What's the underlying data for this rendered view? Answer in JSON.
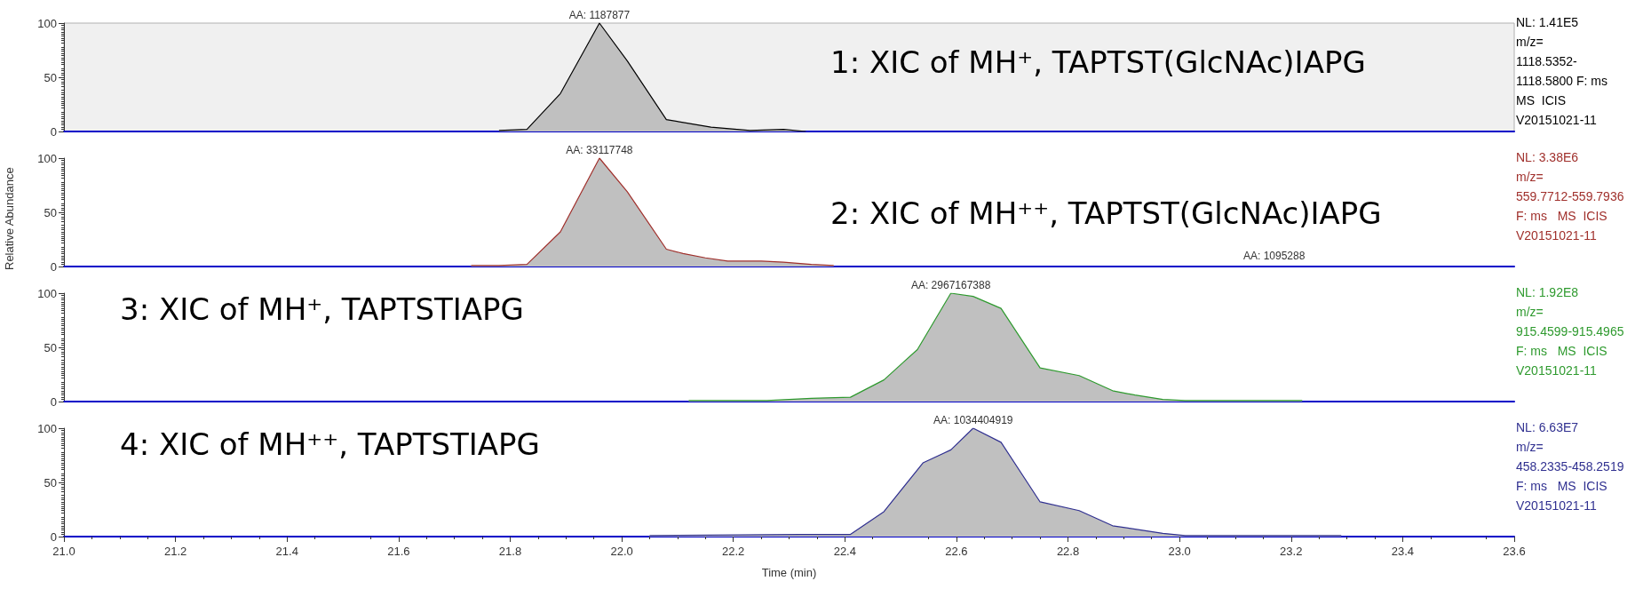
{
  "chart_data": [
    {
      "type": "area",
      "title": "1: XIC of MH⁺, TAPTST(GlcNAc)IAPG",
      "x": [
        21.78,
        21.83,
        21.89,
        21.96,
        22.01,
        22.08,
        22.16,
        22.23,
        22.29,
        22.33
      ],
      "series": [
        {
          "color": "#000000",
          "values": [
            1,
            2,
            35,
            100,
            65,
            11,
            4,
            1,
            2,
            0
          ]
        }
      ],
      "xlim": [
        21.0,
        23.6
      ],
      "ylim": [
        0,
        100
      ],
      "yticks": [
        0,
        50,
        100
      ],
      "tick_labels": "y",
      "grid": false,
      "marker": "none",
      "annotations": [
        {
          "text": "AA: 1187877",
          "x": 21.96,
          "y": 100
        },
        "NL: 1.41E5",
        "m/z=",
        "1118.5352-",
        "1118.5800 F: ms",
        "MS  ICIS",
        "V20151021-11"
      ]
    },
    {
      "type": "area",
      "title": "2: XIC of MH⁺⁺, TAPTST(GlcNAc)IAPG",
      "ylabel": "Relative Abundance",
      "x": [
        21.73,
        21.78,
        21.83,
        21.89,
        21.96,
        22.01,
        22.08,
        22.11,
        22.15,
        22.19,
        22.25,
        22.29,
        22.34,
        22.38
      ],
      "series": [
        {
          "color": "#a0302c",
          "values": [
            1,
            1,
            2,
            32,
            100,
            69,
            16,
            12,
            8,
            5,
            5,
            4,
            2,
            1
          ]
        }
      ],
      "xlim": [
        21.0,
        23.6
      ],
      "ylim": [
        0,
        100
      ],
      "yticks": [
        0,
        50,
        100
      ],
      "tick_labels": "y",
      "grid": false,
      "marker": "none",
      "annotations": [
        {
          "text": "AA: 33117748",
          "x": 21.96,
          "y": 100
        },
        "AA: 1095288",
        "NL: 3.38E6",
        "m/z=",
        "559.7712-559.7936",
        "F: ms   MS  ICIS",
        "V20151021-11"
      ]
    },
    {
      "type": "area",
      "title": "3: XIC of MH⁺, TAPTSTIAPG",
      "x": [
        22.12,
        22.26,
        22.3,
        22.34,
        22.41,
        22.47,
        22.53,
        22.59,
        22.63,
        22.68,
        22.75,
        22.82,
        22.88,
        22.92,
        22.97,
        23.01,
        23.22
      ],
      "series": [
        {
          "color": "#2e9a2e",
          "values": [
            1,
            1,
            2,
            3,
            4,
            20,
            48,
            100,
            97,
            86,
            31,
            24,
            10,
            6,
            2,
            1,
            1
          ]
        }
      ],
      "xlim": [
        21.0,
        23.6
      ],
      "ylim": [
        0,
        100
      ],
      "yticks": [
        0,
        50,
        100
      ],
      "tick_labels": "y",
      "grid": false,
      "marker": "none",
      "annotations": [
        {
          "text": "AA: 2967167388",
          "x": 22.59,
          "y": 100
        },
        "NL: 1.92E8",
        "m/z=",
        "915.4599-915.4965",
        "F: ms   MS  ICIS",
        "V20151021-11"
      ]
    },
    {
      "type": "area",
      "title": "4: XIC of MH⁺⁺, TAPTSTIAPG",
      "xlabel": "Time (min)",
      "x": [
        22.05,
        22.32,
        22.41,
        22.47,
        22.54,
        22.59,
        22.63,
        22.68,
        22.75,
        22.82,
        22.88,
        22.97,
        23.01,
        23.29
      ],
      "series": [
        {
          "color": "#303090",
          "values": [
            1,
            2,
            2,
            23,
            68,
            80,
            100,
            87,
            32,
            24,
            10,
            3,
            1,
            1
          ]
        }
      ],
      "xlim": [
        21.0,
        23.6
      ],
      "ylim": [
        0,
        100
      ],
      "yticks": [
        0,
        50,
        100
      ],
      "xticks": [
        {
          "value": 21.0,
          "label": "21.0"
        },
        21.2,
        21.4,
        21.6,
        21.8,
        {
          "value": 22.0,
          "label": "22.0"
        },
        22.2,
        22.4,
        22.6,
        22.8,
        {
          "value": 23.0,
          "label": "23.0"
        },
        23.2,
        23.4,
        23.6
      ],
      "grid": false,
      "marker": "none",
      "annotations": [
        {
          "text": "AA: 1034404919",
          "x": 22.63,
          "y": 100
        },
        "NL: 6.63E7",
        "m/z=",
        "458.2335-458.2519",
        "F: ms   MS  ICIS",
        "V20151021-11"
      ]
    }
  ]
}
